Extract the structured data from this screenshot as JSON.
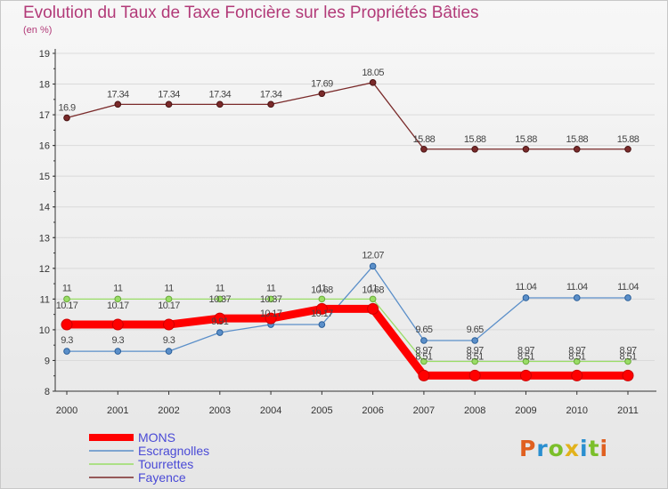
{
  "chart_data": {
    "type": "line",
    "title": "Evolution du Taux de Taxe Foncière sur les Propriétés Bâties",
    "ylabel": "(en %)",
    "xlabel": "",
    "categories": [
      "2000",
      "2001",
      "2002",
      "2003",
      "2004",
      "2005",
      "2006",
      "2007",
      "2008",
      "2009",
      "2010",
      "2011"
    ],
    "ylim": [
      8,
      19
    ],
    "yticks": [
      8,
      9,
      10,
      11,
      12,
      13,
      14,
      15,
      16,
      17,
      18,
      19
    ],
    "grid": true,
    "series": [
      {
        "name": "MONS",
        "color": "#ff0000",
        "values": [
          10.17,
          10.17,
          10.17,
          10.37,
          10.37,
          10.68,
          10.68,
          8.51,
          8.51,
          8.51,
          8.51,
          8.51
        ],
        "labels": [
          "10.17",
          "10.17",
          "10.17",
          "10.37",
          "10.37",
          "10.68",
          "10.68",
          "8.51",
          "8.51",
          "8.51",
          "8.51",
          "8.51"
        ]
      },
      {
        "name": "Escragnolles",
        "color": "#5b8fc9",
        "values": [
          9.3,
          9.3,
          9.3,
          9.91,
          10.17,
          10.17,
          12.07,
          9.65,
          9.65,
          11.04,
          11.04,
          11.04
        ],
        "labels": [
          "9.3",
          "9.3",
          "9.3",
          "9.91",
          "10.17",
          "10.17",
          "12.07",
          "9.65",
          "9.65",
          "11.04",
          "11.04",
          "11.04"
        ]
      },
      {
        "name": "Tourrettes",
        "color": "#99dd66",
        "values": [
          11,
          11,
          11,
          11,
          11,
          11,
          11,
          8.97,
          8.97,
          8.97,
          8.97,
          8.97
        ],
        "labels": [
          "11",
          "11",
          "11",
          "11",
          "11",
          "11",
          "11",
          "8.97",
          "8.97",
          "8.97",
          "8.97",
          "8.97"
        ]
      },
      {
        "name": "Fayence",
        "color": "#7a2a2a",
        "values": [
          16.9,
          17.34,
          17.34,
          17.34,
          17.34,
          17.69,
          18.05,
          15.88,
          15.88,
          15.88,
          15.88,
          15.88
        ],
        "labels": [
          "16.9",
          "17.34",
          "17.34",
          "17.34",
          "17.34",
          "17.69",
          "18.05",
          "15.88",
          "15.88",
          "15.88",
          "15.88",
          "15.88"
        ]
      }
    ],
    "legend_position": "bottom-left"
  }
}
